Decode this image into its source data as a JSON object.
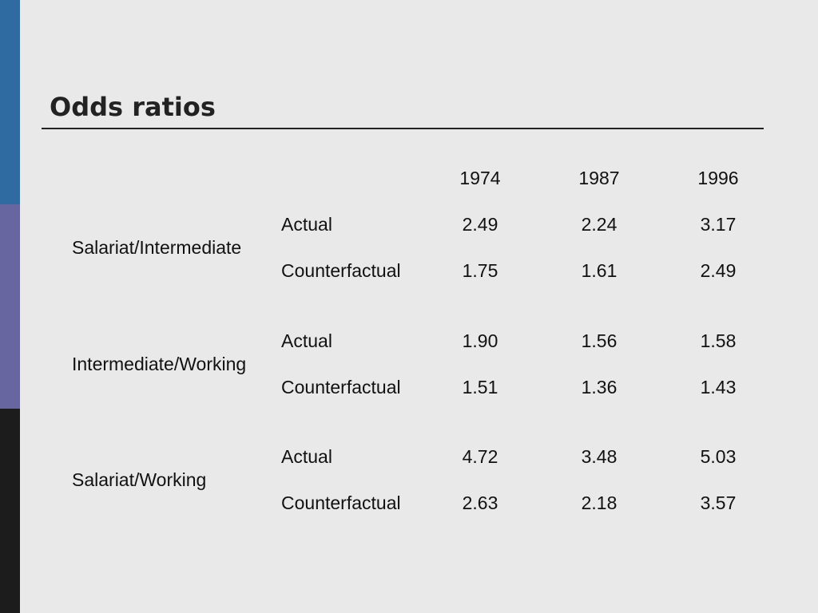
{
  "colors": {
    "background": "#e9e9e9",
    "sidebar": [
      "#2f6aa0",
      "#6766a0",
      "#1c1c1c"
    ],
    "title": "#222222"
  },
  "slide": {
    "title": "Odds ratios"
  },
  "table": {
    "years": [
      "1974",
      "1987",
      "1996"
    ],
    "groups": [
      {
        "label": "Salariat/Intermediate",
        "rows": [
          {
            "type": "Actual",
            "values": [
              "2.49",
              "2.24",
              "3.17"
            ]
          },
          {
            "type": "Counterfactual",
            "values": [
              "1.75",
              "1.61",
              "2.49"
            ]
          }
        ]
      },
      {
        "label": "Intermediate/Working",
        "rows": [
          {
            "type": "Actual",
            "values": [
              "1.90",
              "1.56",
              "1.58"
            ]
          },
          {
            "type": "Counterfactual",
            "values": [
              "1.51",
              "1.36",
              "1.43"
            ]
          }
        ]
      },
      {
        "label": "Salariat/Working",
        "rows": [
          {
            "type": "Actual",
            "values": [
              "4.72",
              "3.48",
              "5.03"
            ]
          },
          {
            "type": "Counterfactual",
            "values": [
              "2.63",
              "2.18",
              "3.57"
            ]
          }
        ]
      }
    ]
  }
}
